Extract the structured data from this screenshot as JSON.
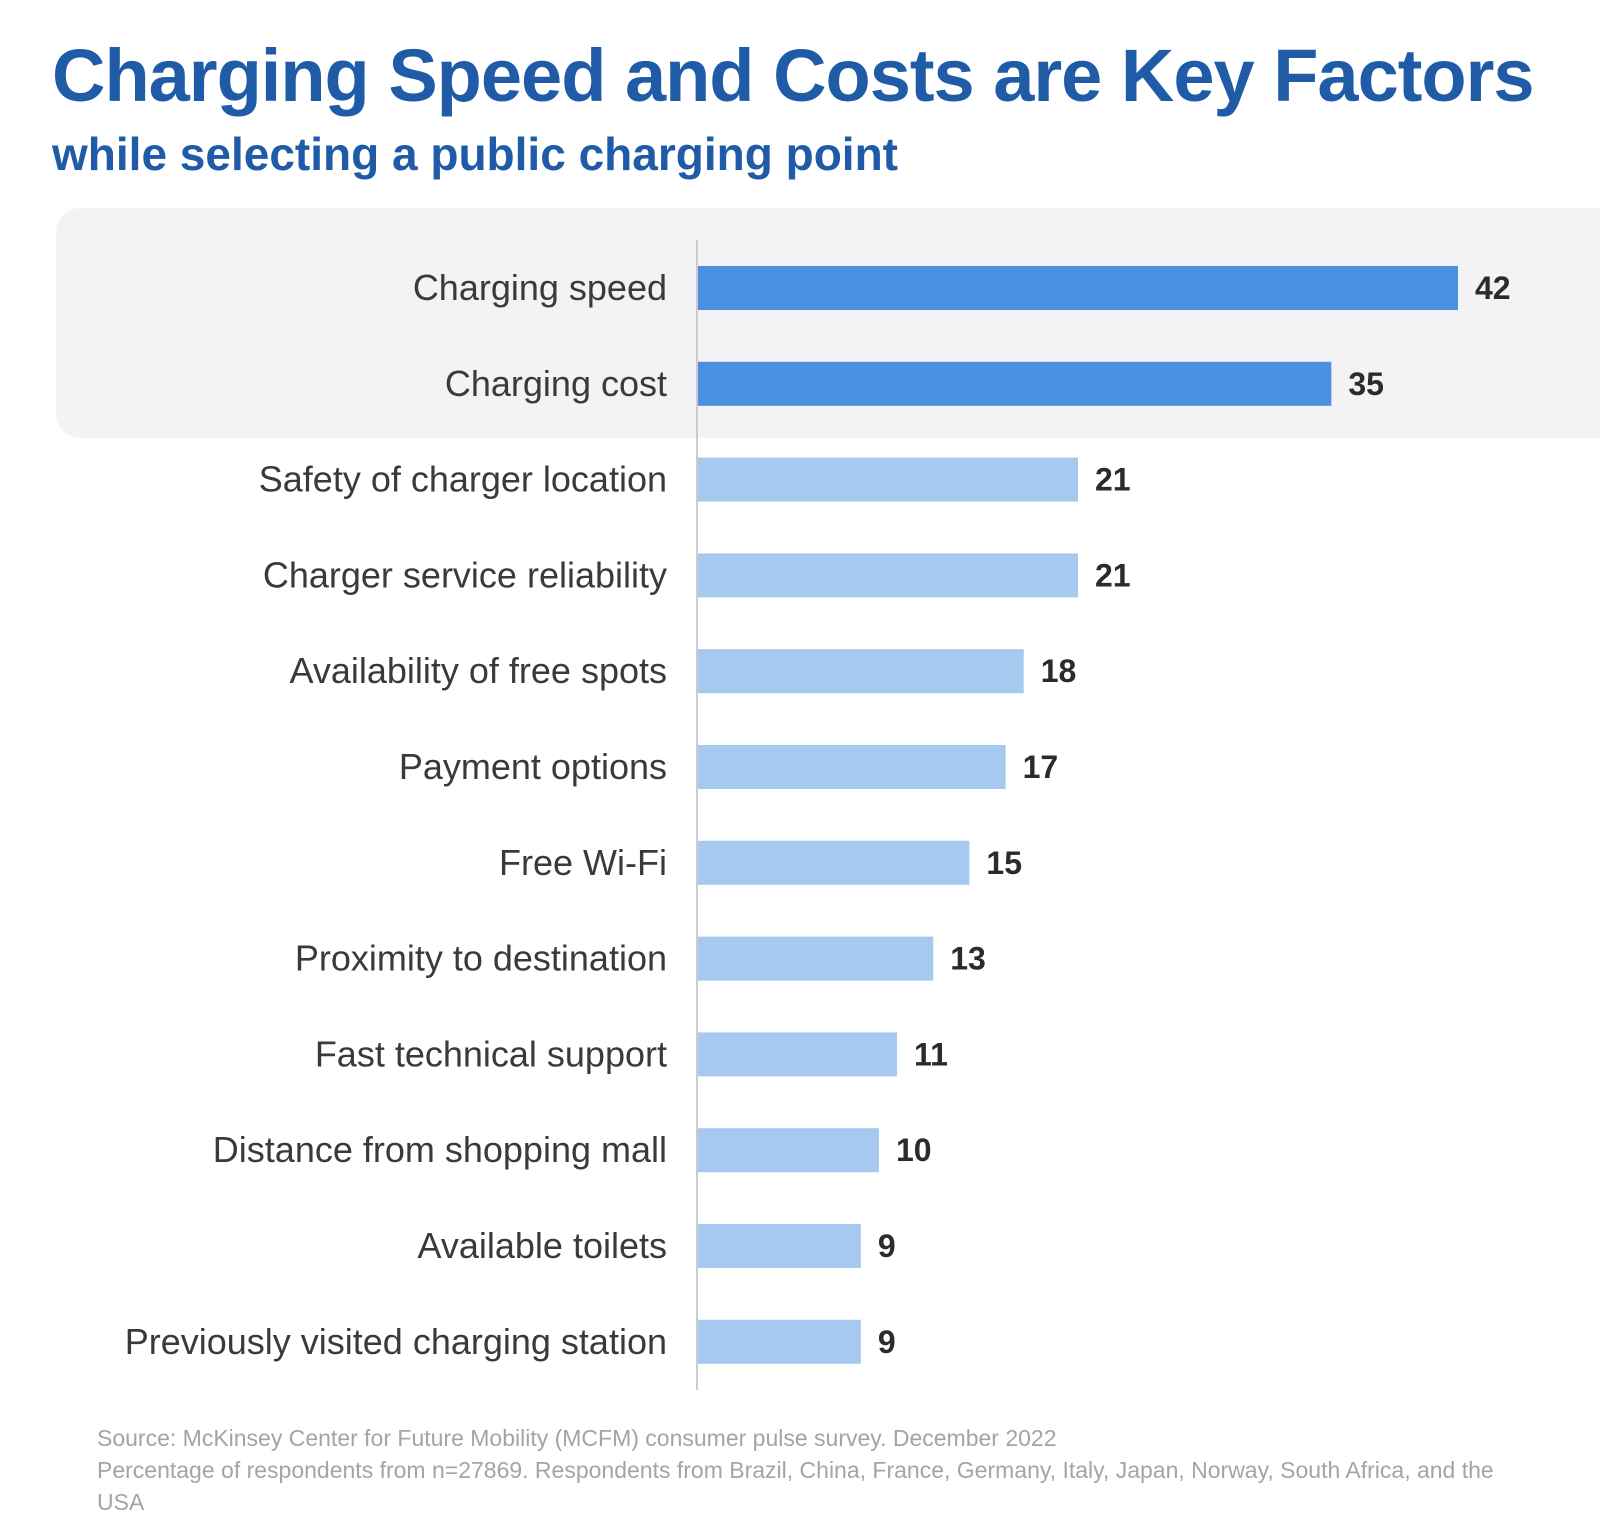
{
  "header": {
    "title": "Charging Speed and Costs are Key Factors",
    "subtitle": "while selecting a public charging point"
  },
  "colors": {
    "title": "#1f5ba6",
    "highlight_bar": "#4a90e0",
    "regular_bar": "#a6c9ef",
    "highlight_panel": "#f3f2f4",
    "axis": "#cccccc"
  },
  "chart_data": {
    "type": "bar",
    "orientation": "horizontal",
    "title": "Charging Speed and Costs are Key Factors",
    "subtitle": "while selecting a public charging point",
    "categories": [
      "Charging speed",
      "Charging cost",
      "Safety of charger location",
      "Charger service reliability",
      "Availability of free spots",
      "Payment options",
      "Free Wi-Fi",
      "Proximity to destination",
      "Fast technical support",
      "Distance from shopping mall",
      "Available toilets",
      "Previously visited charging station"
    ],
    "values": [
      42,
      35,
      21,
      21,
      18,
      17,
      15,
      13,
      11,
      10,
      9,
      9
    ],
    "highlighted_categories": [
      "Charging speed",
      "Charging cost"
    ],
    "xlim": [
      0,
      42
    ],
    "grid": false,
    "legend": "none"
  },
  "footer": {
    "source_line1": "Source: McKinsey Center for  Future Mobility (MCFM) consumer pulse survey. December 2022",
    "source_line2": "Percentage of respondents from n=27869. Respondents from Brazil, China, France, Germany, Italy, Japan, Norway, South Africa, and the USA"
  }
}
